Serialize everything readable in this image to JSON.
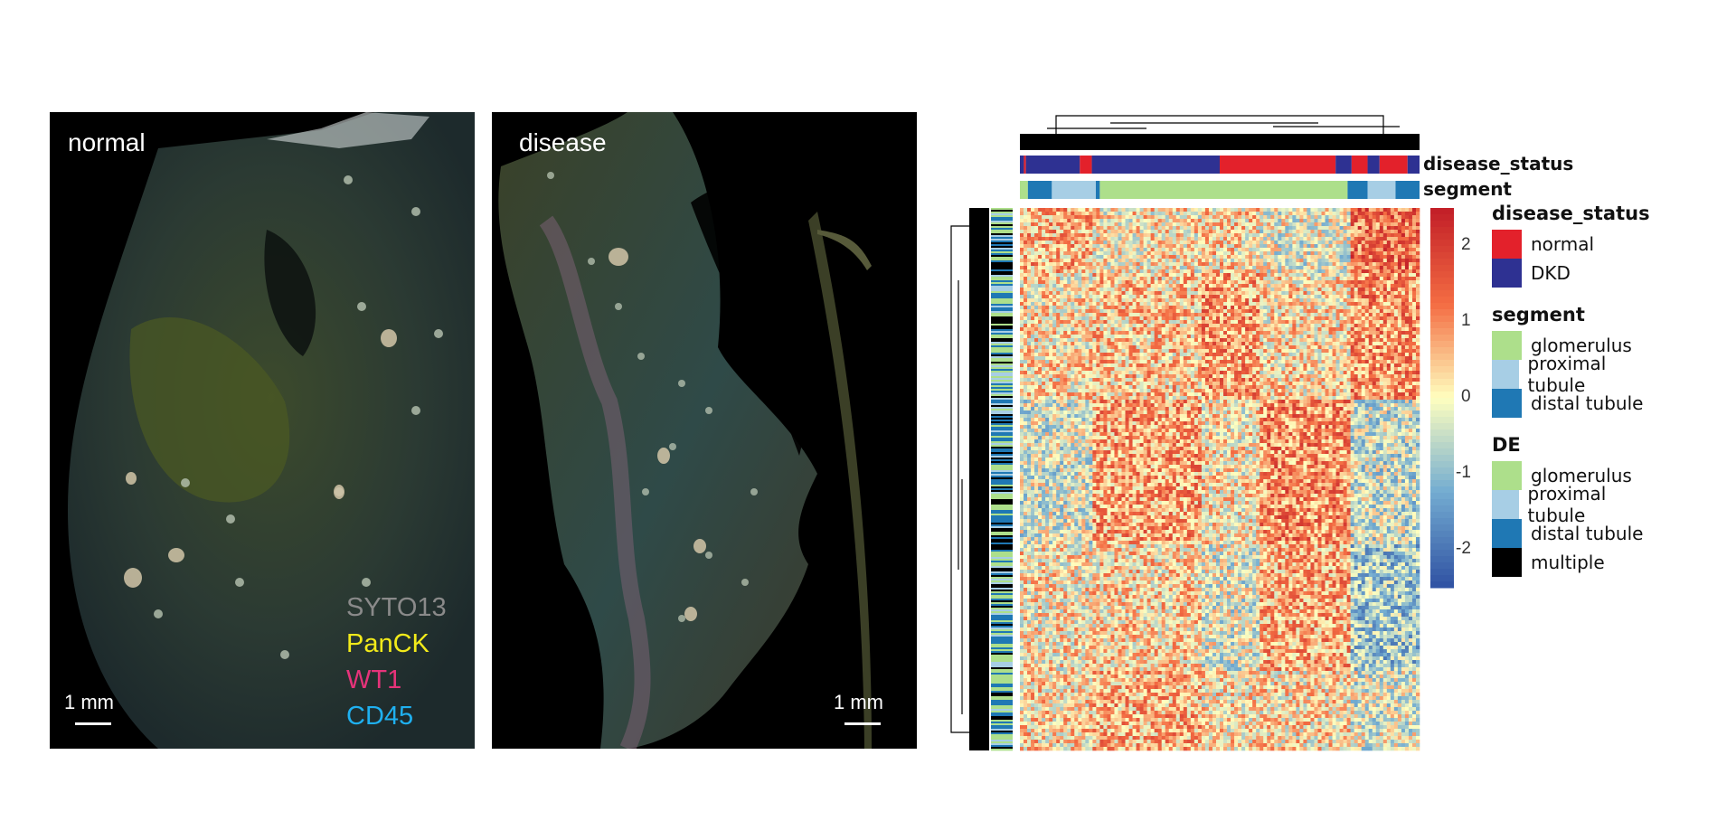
{
  "panels": {
    "normal": {
      "title": "normal",
      "scalebar": "1 mm"
    },
    "disease": {
      "title": "disease",
      "scalebar": "1 mm"
    }
  },
  "channels": [
    {
      "name": "SYTO13",
      "color": "#8a8a8a"
    },
    {
      "name": "PanCK",
      "color": "#f2ea1a"
    },
    {
      "name": "WT1",
      "color": "#e5337a"
    },
    {
      "name": "CD45",
      "color": "#1fb0f0"
    }
  ],
  "heatmap": {
    "annotation_labels": {
      "disease_status": "disease_status",
      "segment": "segment"
    },
    "colorbar_ticks": [
      "2",
      "1",
      "0",
      "-1",
      "-2"
    ],
    "colorbar_range": [
      -2.4,
      2.4
    ],
    "colors": {
      "normal": "#e3212b",
      "DKD": "#2e3192",
      "glomerulus": "#addf8b",
      "proximal_tubule": "#a7cee5",
      "distal_tubule": "#1f78b4",
      "multiple": "#000000"
    },
    "legends": {
      "disease_status": {
        "title": "disease_status",
        "items": [
          "normal",
          "DKD"
        ]
      },
      "segment": {
        "title": "segment",
        "items": [
          "glomerulus",
          "proximal tubule",
          "distal tubule"
        ]
      },
      "DE": {
        "title": "DE",
        "items": [
          "glomerulus",
          "proximal tubule",
          "distal tubule",
          "multiple"
        ]
      }
    }
  }
}
